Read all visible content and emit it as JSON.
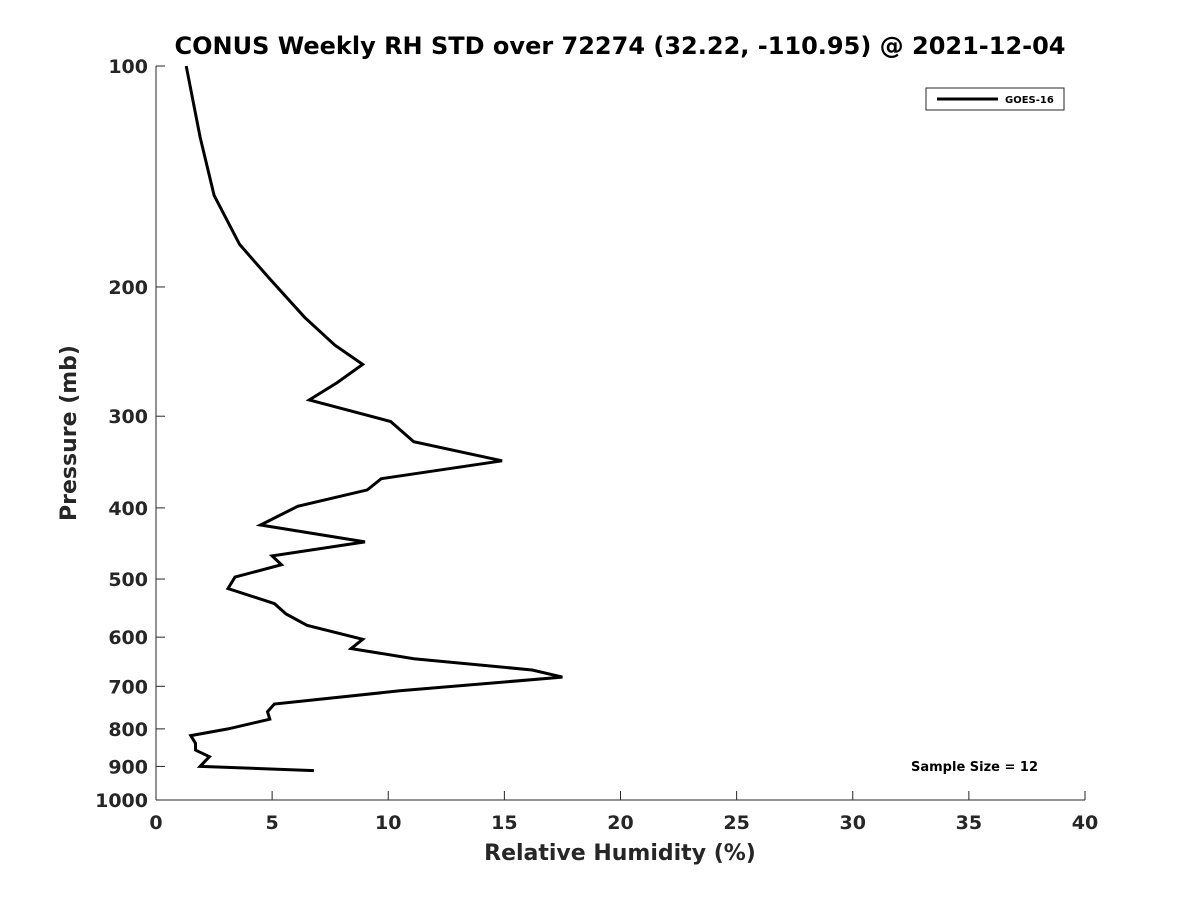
{
  "chart_data": {
    "type": "line",
    "title": "CONUS Weekly RH STD over 72274 (32.22, -110.95) @ 2021-12-04",
    "xlabel": "Relative Humidity (%)",
    "ylabel": "Pressure (mb)",
    "xlim": [
      0,
      40
    ],
    "ylim": [
      100,
      1000
    ],
    "yscale": "log",
    "yreversed": true,
    "xticks": [
      0,
      5,
      10,
      15,
      20,
      25,
      30,
      35,
      40
    ],
    "xtick_labels": [
      "0",
      "5",
      "10",
      "15",
      "20",
      "25",
      "30",
      "35",
      "40"
    ],
    "yticks": [
      100,
      200,
      300,
      400,
      500,
      600,
      700,
      800,
      900,
      1000
    ],
    "ytick_labels": [
      "100",
      "200",
      "300",
      "400",
      "500",
      "600",
      "700",
      "800",
      "900",
      "1000"
    ],
    "grid": false,
    "legend": {
      "position": "top-right",
      "entries": [
        "GOES-16"
      ]
    },
    "annotation": "Sample Size = 12",
    "series": [
      {
        "name": "GOES-16",
        "color": "#000000",
        "points": [
          [
            1.3,
            100
          ],
          [
            1.9,
            125
          ],
          [
            2.5,
            150
          ],
          [
            3.6,
            175
          ],
          [
            4.9,
            195
          ],
          [
            6.4,
            220
          ],
          [
            7.7,
            240
          ],
          [
            8.9,
            255
          ],
          [
            7.8,
            270
          ],
          [
            6.6,
            285
          ],
          [
            10.1,
            305
          ],
          [
            11.1,
            325
          ],
          [
            14.9,
            345
          ],
          [
            9.7,
            365
          ],
          [
            9.1,
            378
          ],
          [
            6.1,
            398
          ],
          [
            4.5,
            422
          ],
          [
            9.0,
            445
          ],
          [
            5.0,
            465
          ],
          [
            5.4,
            478
          ],
          [
            3.4,
            497
          ],
          [
            3.1,
            515
          ],
          [
            5.1,
            540
          ],
          [
            5.6,
            558
          ],
          [
            6.5,
            578
          ],
          [
            8.9,
            604
          ],
          [
            8.4,
            622
          ],
          [
            11.1,
            642
          ],
          [
            16.2,
            665
          ],
          [
            17.5,
            680
          ],
          [
            10.5,
            710
          ],
          [
            5.1,
            740
          ],
          [
            4.8,
            758
          ],
          [
            4.9,
            776
          ],
          [
            3.1,
            800
          ],
          [
            1.5,
            817
          ],
          [
            1.7,
            837
          ],
          [
            1.7,
            855
          ],
          [
            2.3,
            873
          ],
          [
            1.9,
            900
          ],
          [
            6.8,
            912
          ]
        ]
      }
    ]
  }
}
